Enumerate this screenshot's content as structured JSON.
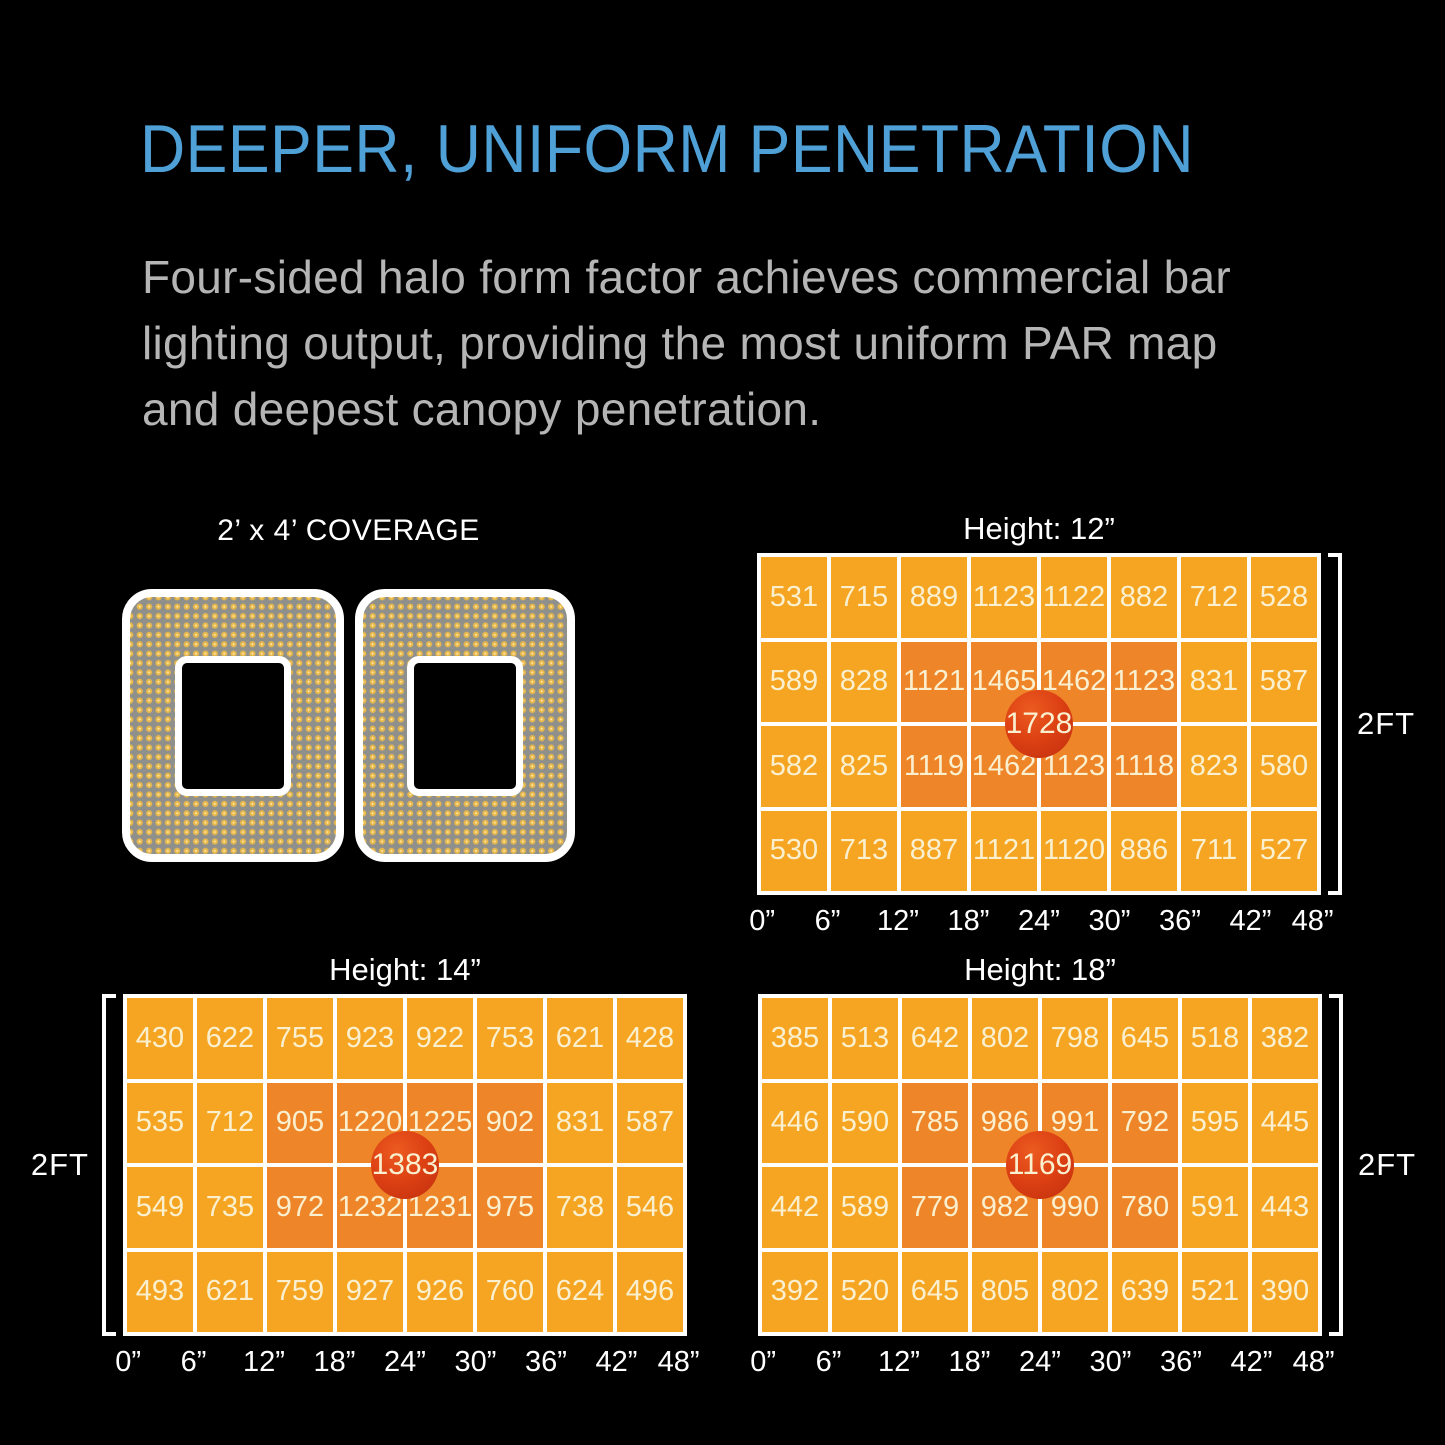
{
  "heading": {
    "text": "DEEPER, UNIFORM PENETRATION",
    "color": "#4EA0D6"
  },
  "paragraph": {
    "color": "#B5B5B5",
    "lines": [
      "Four-sided halo form factor achieves commercial bar",
      "lighting output, providing the most uniform PAR map",
      "and deepest canopy penetration."
    ]
  },
  "coverage": {
    "label": "2’ x 4’ COVERAGE"
  },
  "colors": {
    "background": "#000000",
    "heading_blue": "#4EA0D6",
    "body_gray": "#B5B5B5",
    "cell_orange": "#F5A521",
    "cell_hot_orange": "#EE8528",
    "peak_red": "#DC4013",
    "cell_text_cream": "#FAF0CF",
    "grid_line_white": "#FFFFFF",
    "led_dot_gold": "#E8B84D",
    "panel_gray": "#8F908C"
  },
  "chart_data": [
    {
      "type": "heatmap",
      "title": "Height: 12”",
      "x_tick_labels": [
        "0”",
        "6”",
        "12”",
        "18”",
        "24”",
        "30”",
        "36”",
        "42”",
        "48”"
      ],
      "depth_label": "2FT",
      "values": [
        [
          531,
          715,
          889,
          1123,
          1122,
          882,
          712,
          528
        ],
        [
          589,
          828,
          1121,
          1465,
          1462,
          1123,
          831,
          587
        ],
        [
          582,
          825,
          1119,
          1462,
          1123,
          1118,
          823,
          580
        ],
        [
          530,
          713,
          887,
          1121,
          1120,
          886,
          711,
          527
        ]
      ],
      "peak": 1728,
      "hot_region": {
        "rows": [
          1,
          2
        ],
        "cols": [
          2,
          3,
          4,
          5
        ]
      },
      "legend_position": "none",
      "grid": true
    },
    {
      "type": "heatmap",
      "title": "Height: 14”",
      "x_tick_labels": [
        "0”",
        "6”",
        "12”",
        "18”",
        "24”",
        "30”",
        "36”",
        "42”",
        "48”"
      ],
      "depth_label": "2FT",
      "values": [
        [
          430,
          622,
          755,
          923,
          922,
          753,
          621,
          428
        ],
        [
          535,
          712,
          905,
          1220,
          1225,
          902,
          831,
          587
        ],
        [
          549,
          735,
          972,
          1232,
          1231,
          975,
          738,
          546
        ],
        [
          493,
          621,
          759,
          927,
          926,
          760,
          624,
          496
        ]
      ],
      "peak": 1383,
      "hot_region": {
        "rows": [
          1,
          2
        ],
        "cols": [
          2,
          3,
          4,
          5
        ]
      },
      "legend_position": "none",
      "grid": true
    },
    {
      "type": "heatmap",
      "title": "Height: 18”",
      "x_tick_labels": [
        "0”",
        "6”",
        "12”",
        "18”",
        "24”",
        "30”",
        "36”",
        "42”",
        "48”"
      ],
      "depth_label": "2FT",
      "values": [
        [
          385,
          513,
          642,
          802,
          798,
          645,
          518,
          382
        ],
        [
          446,
          590,
          785,
          986,
          991,
          792,
          595,
          445
        ],
        [
          442,
          589,
          779,
          982,
          990,
          780,
          591,
          443
        ],
        [
          392,
          520,
          645,
          805,
          802,
          639,
          521,
          390
        ]
      ],
      "peak": 1169,
      "hot_region": {
        "rows": [
          1,
          2
        ],
        "cols": [
          2,
          3,
          4,
          5
        ]
      },
      "legend_position": "none",
      "grid": true
    }
  ]
}
